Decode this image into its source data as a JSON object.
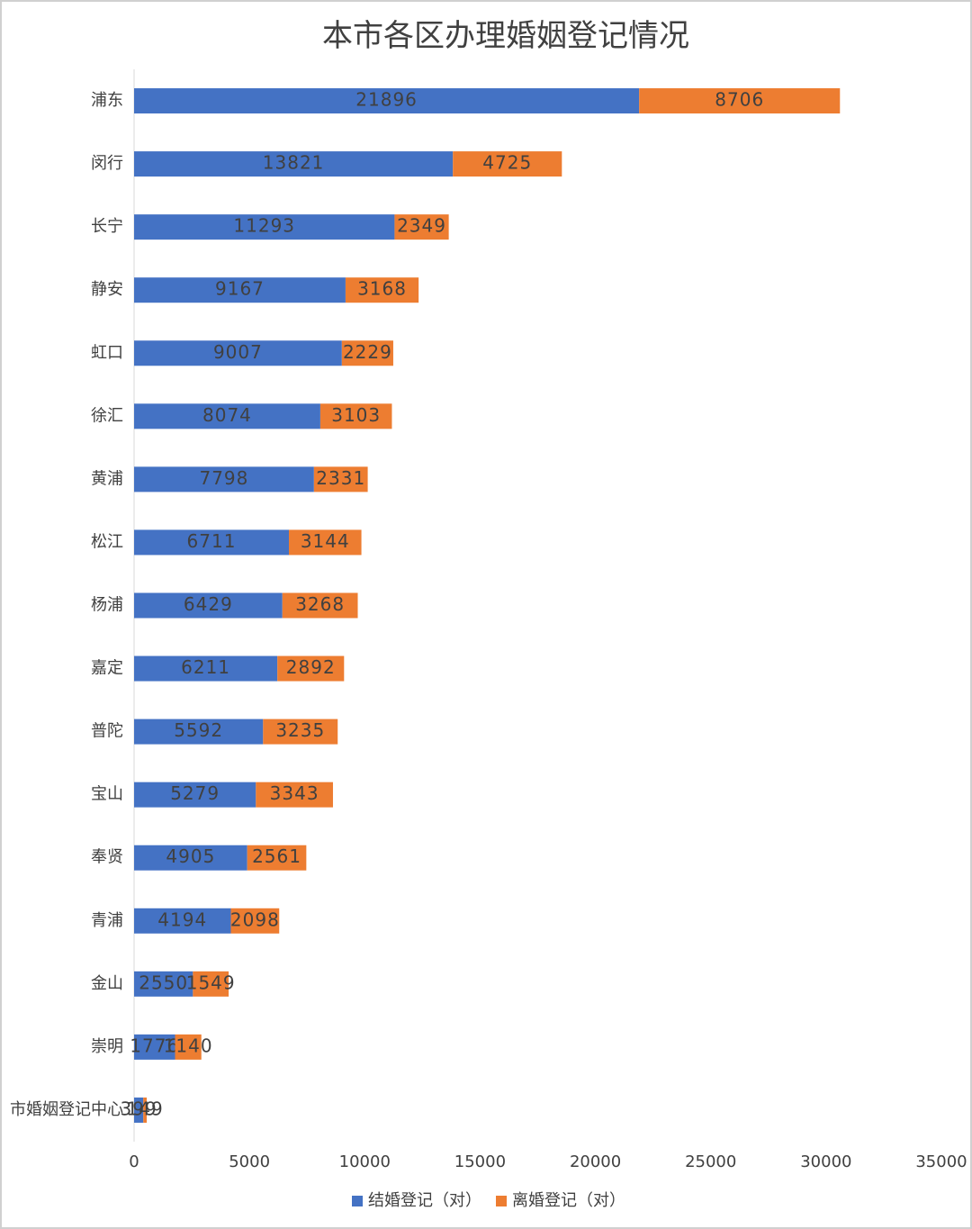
{
  "chart_data": {
    "type": "stacked-bar-horizontal",
    "title": "本市各区办理婚姻登记情况",
    "categories": [
      "浦东",
      "闵行",
      "长宁",
      "静安",
      "虹口",
      "徐汇",
      "黄浦",
      "松江",
      "杨浦",
      "嘉定",
      "普陀",
      "宝山",
      "奉贤",
      "青浦",
      "金山",
      "崇明",
      "市婚姻登记中心"
    ],
    "series": [
      {
        "name": "结婚登记（对）",
        "color": "#4472c4",
        "values": [
          21896,
          13821,
          11293,
          9167,
          9007,
          8074,
          7798,
          6711,
          6429,
          6211,
          5592,
          5279,
          4905,
          4194,
          2550,
          1776,
          399
        ]
      },
      {
        "name": "离婚登记（对）",
        "color": "#ed7d31",
        "values": [
          8706,
          4725,
          2349,
          3168,
          2229,
          3103,
          2331,
          3144,
          3268,
          2892,
          3235,
          3343,
          2561,
          2098,
          1549,
          1140,
          149
        ]
      }
    ],
    "xlim": [
      0,
      35000
    ],
    "xticks": [
      0,
      5000,
      10000,
      15000,
      20000,
      25000,
      30000,
      35000
    ],
    "legend": "bottom",
    "grid": false
  }
}
